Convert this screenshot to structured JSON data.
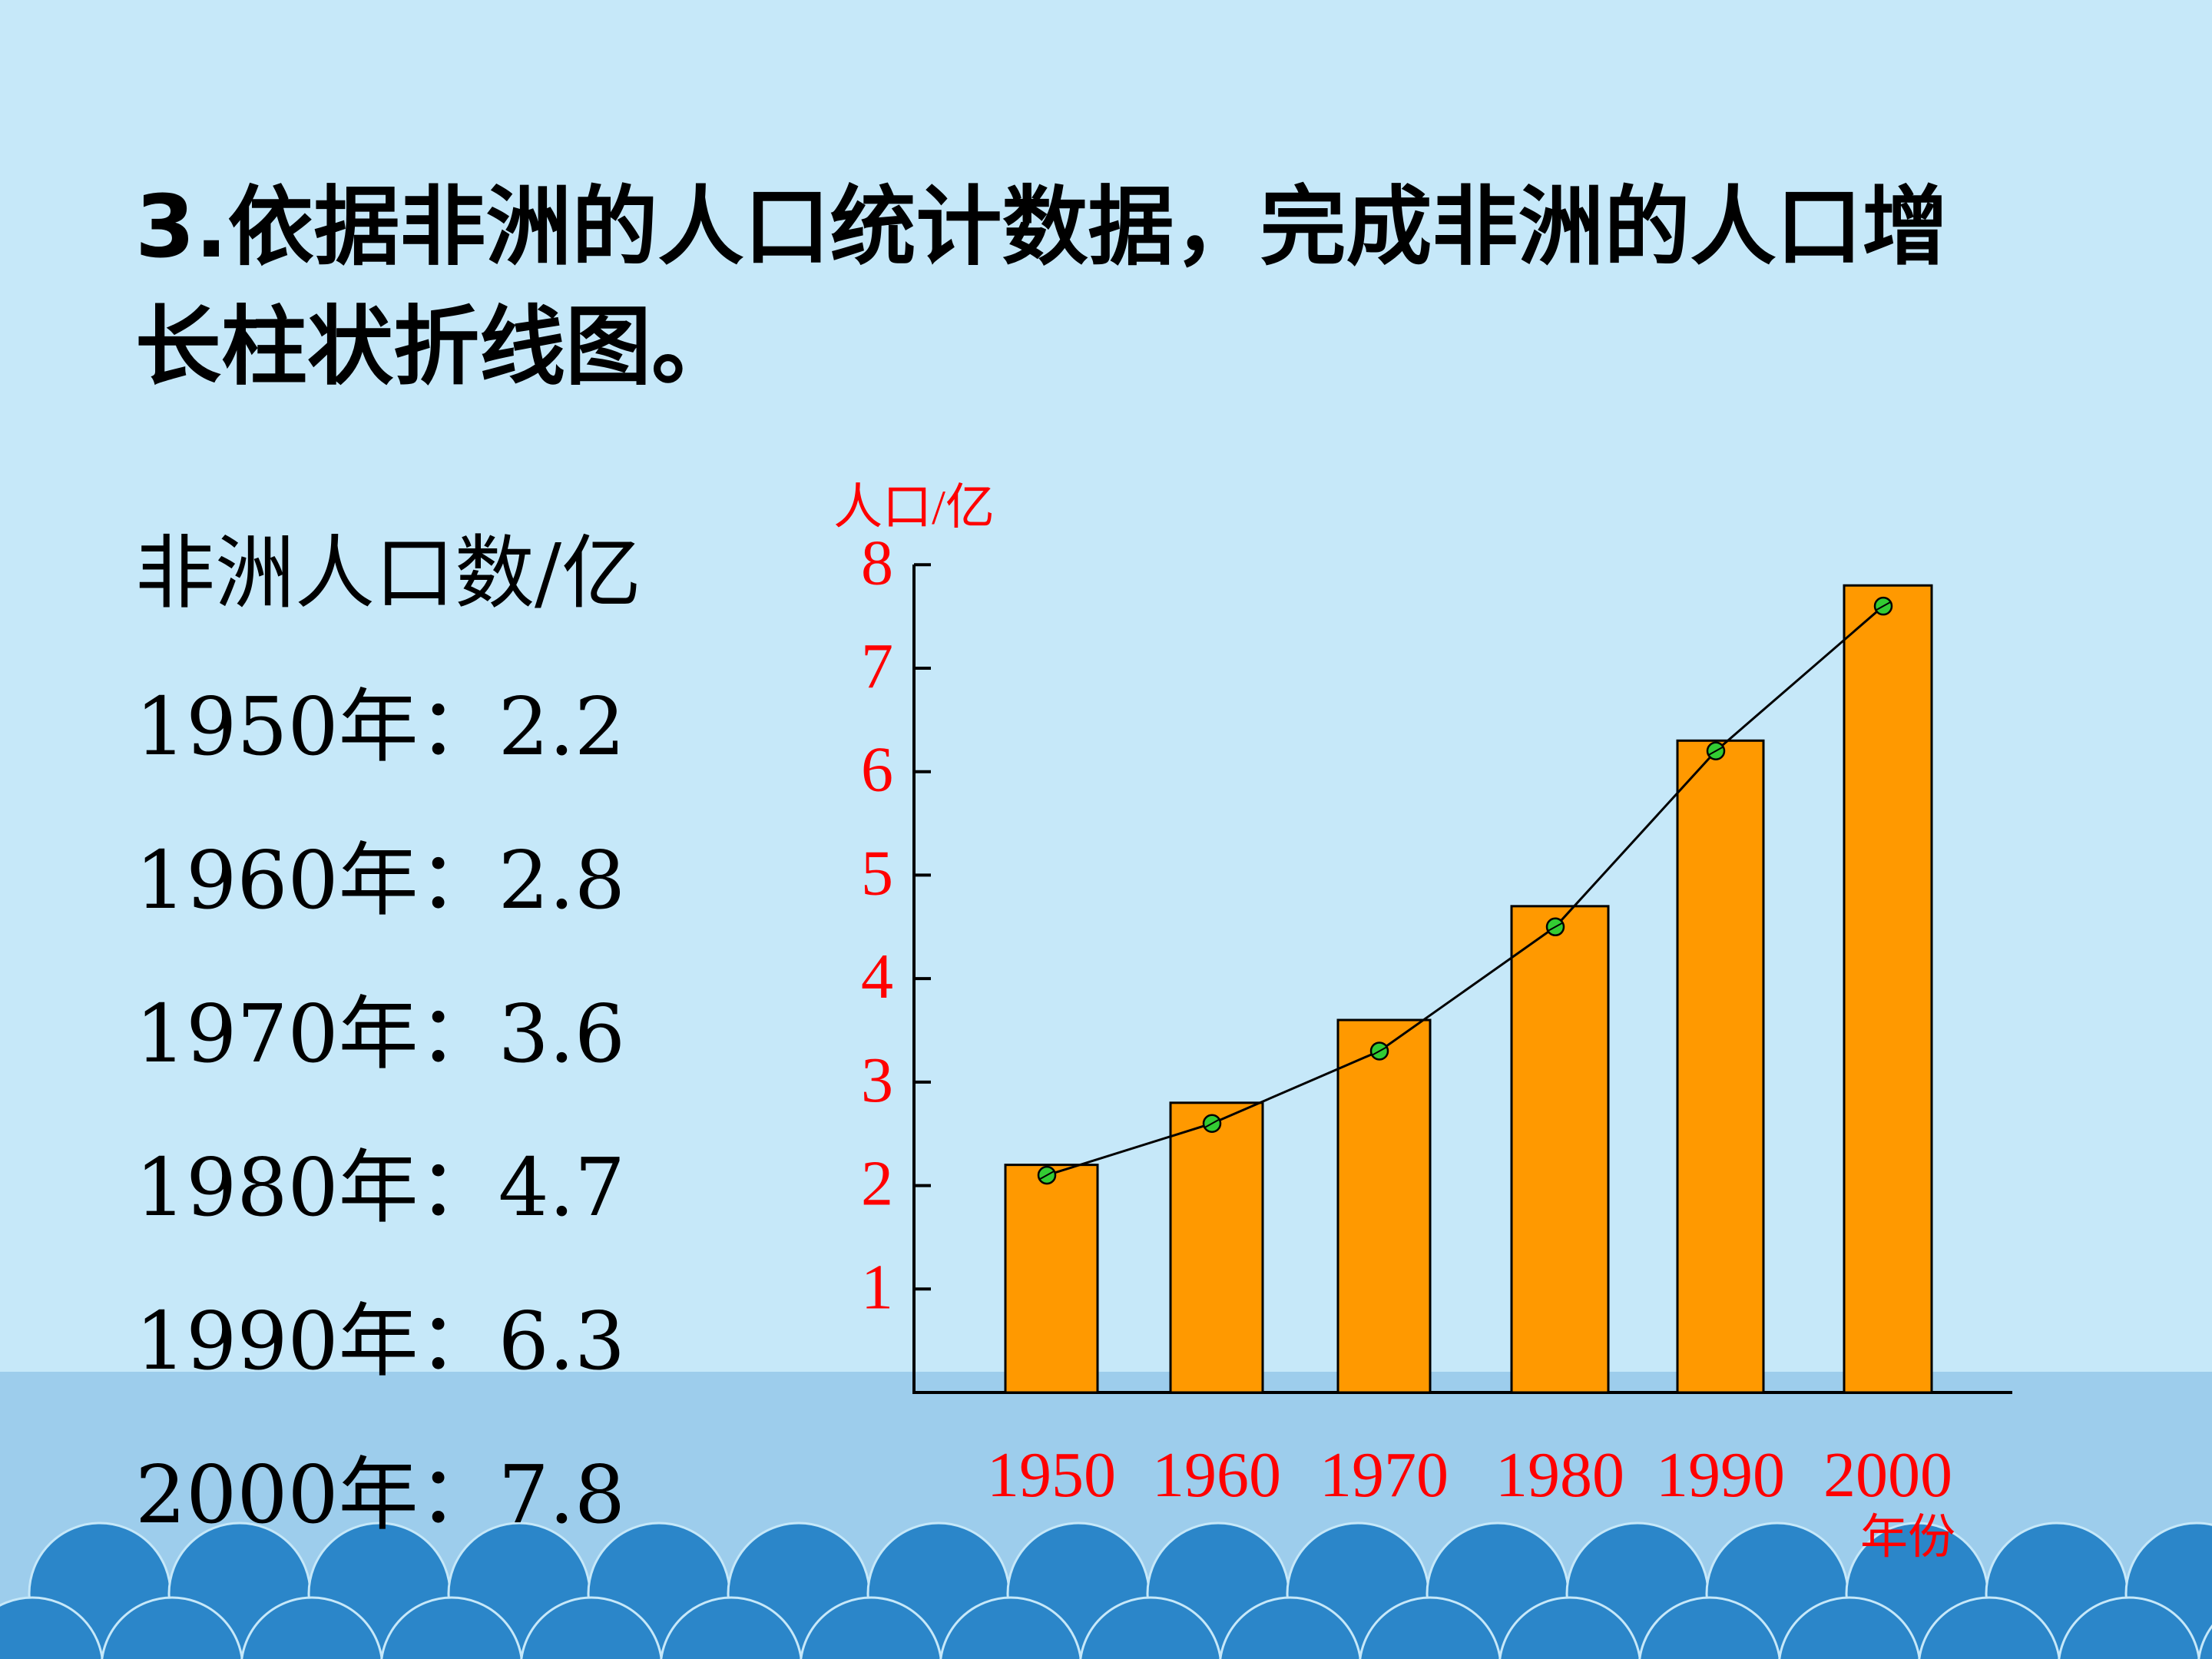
{
  "title": "3.依据非洲的人口统计数据，完成非洲的人口增长柱状折线图。",
  "left_list": {
    "header": "非洲人口数/亿",
    "items": [
      "1950年：2.2",
      "1960年：2.8",
      "1970年：3.6",
      "1980年：4.7",
      "1990年：6.3",
      "2000年：7.8"
    ]
  },
  "colors": {
    "bar": "#ff9900",
    "marker": "#33cc33",
    "axis_text": "#ff0000",
    "background": "#c6e8f9",
    "wave": "#2b86c9"
  },
  "chart_data": {
    "type": "bar",
    "overlay": "line",
    "categories": [
      "1950",
      "1960",
      "1970",
      "1980",
      "1990",
      "2000"
    ],
    "values": [
      2.2,
      2.8,
      3.6,
      4.7,
      6.3,
      7.8
    ],
    "line_values": [
      2.1,
      2.6,
      3.3,
      4.5,
      6.2,
      7.6
    ],
    "ylabel": "人口/亿",
    "xlabel": "年份",
    "ylim": [
      0,
      8
    ],
    "yticks": [
      1,
      2,
      3,
      4,
      5,
      6,
      7,
      8
    ],
    "grid": false,
    "legend": "none"
  }
}
